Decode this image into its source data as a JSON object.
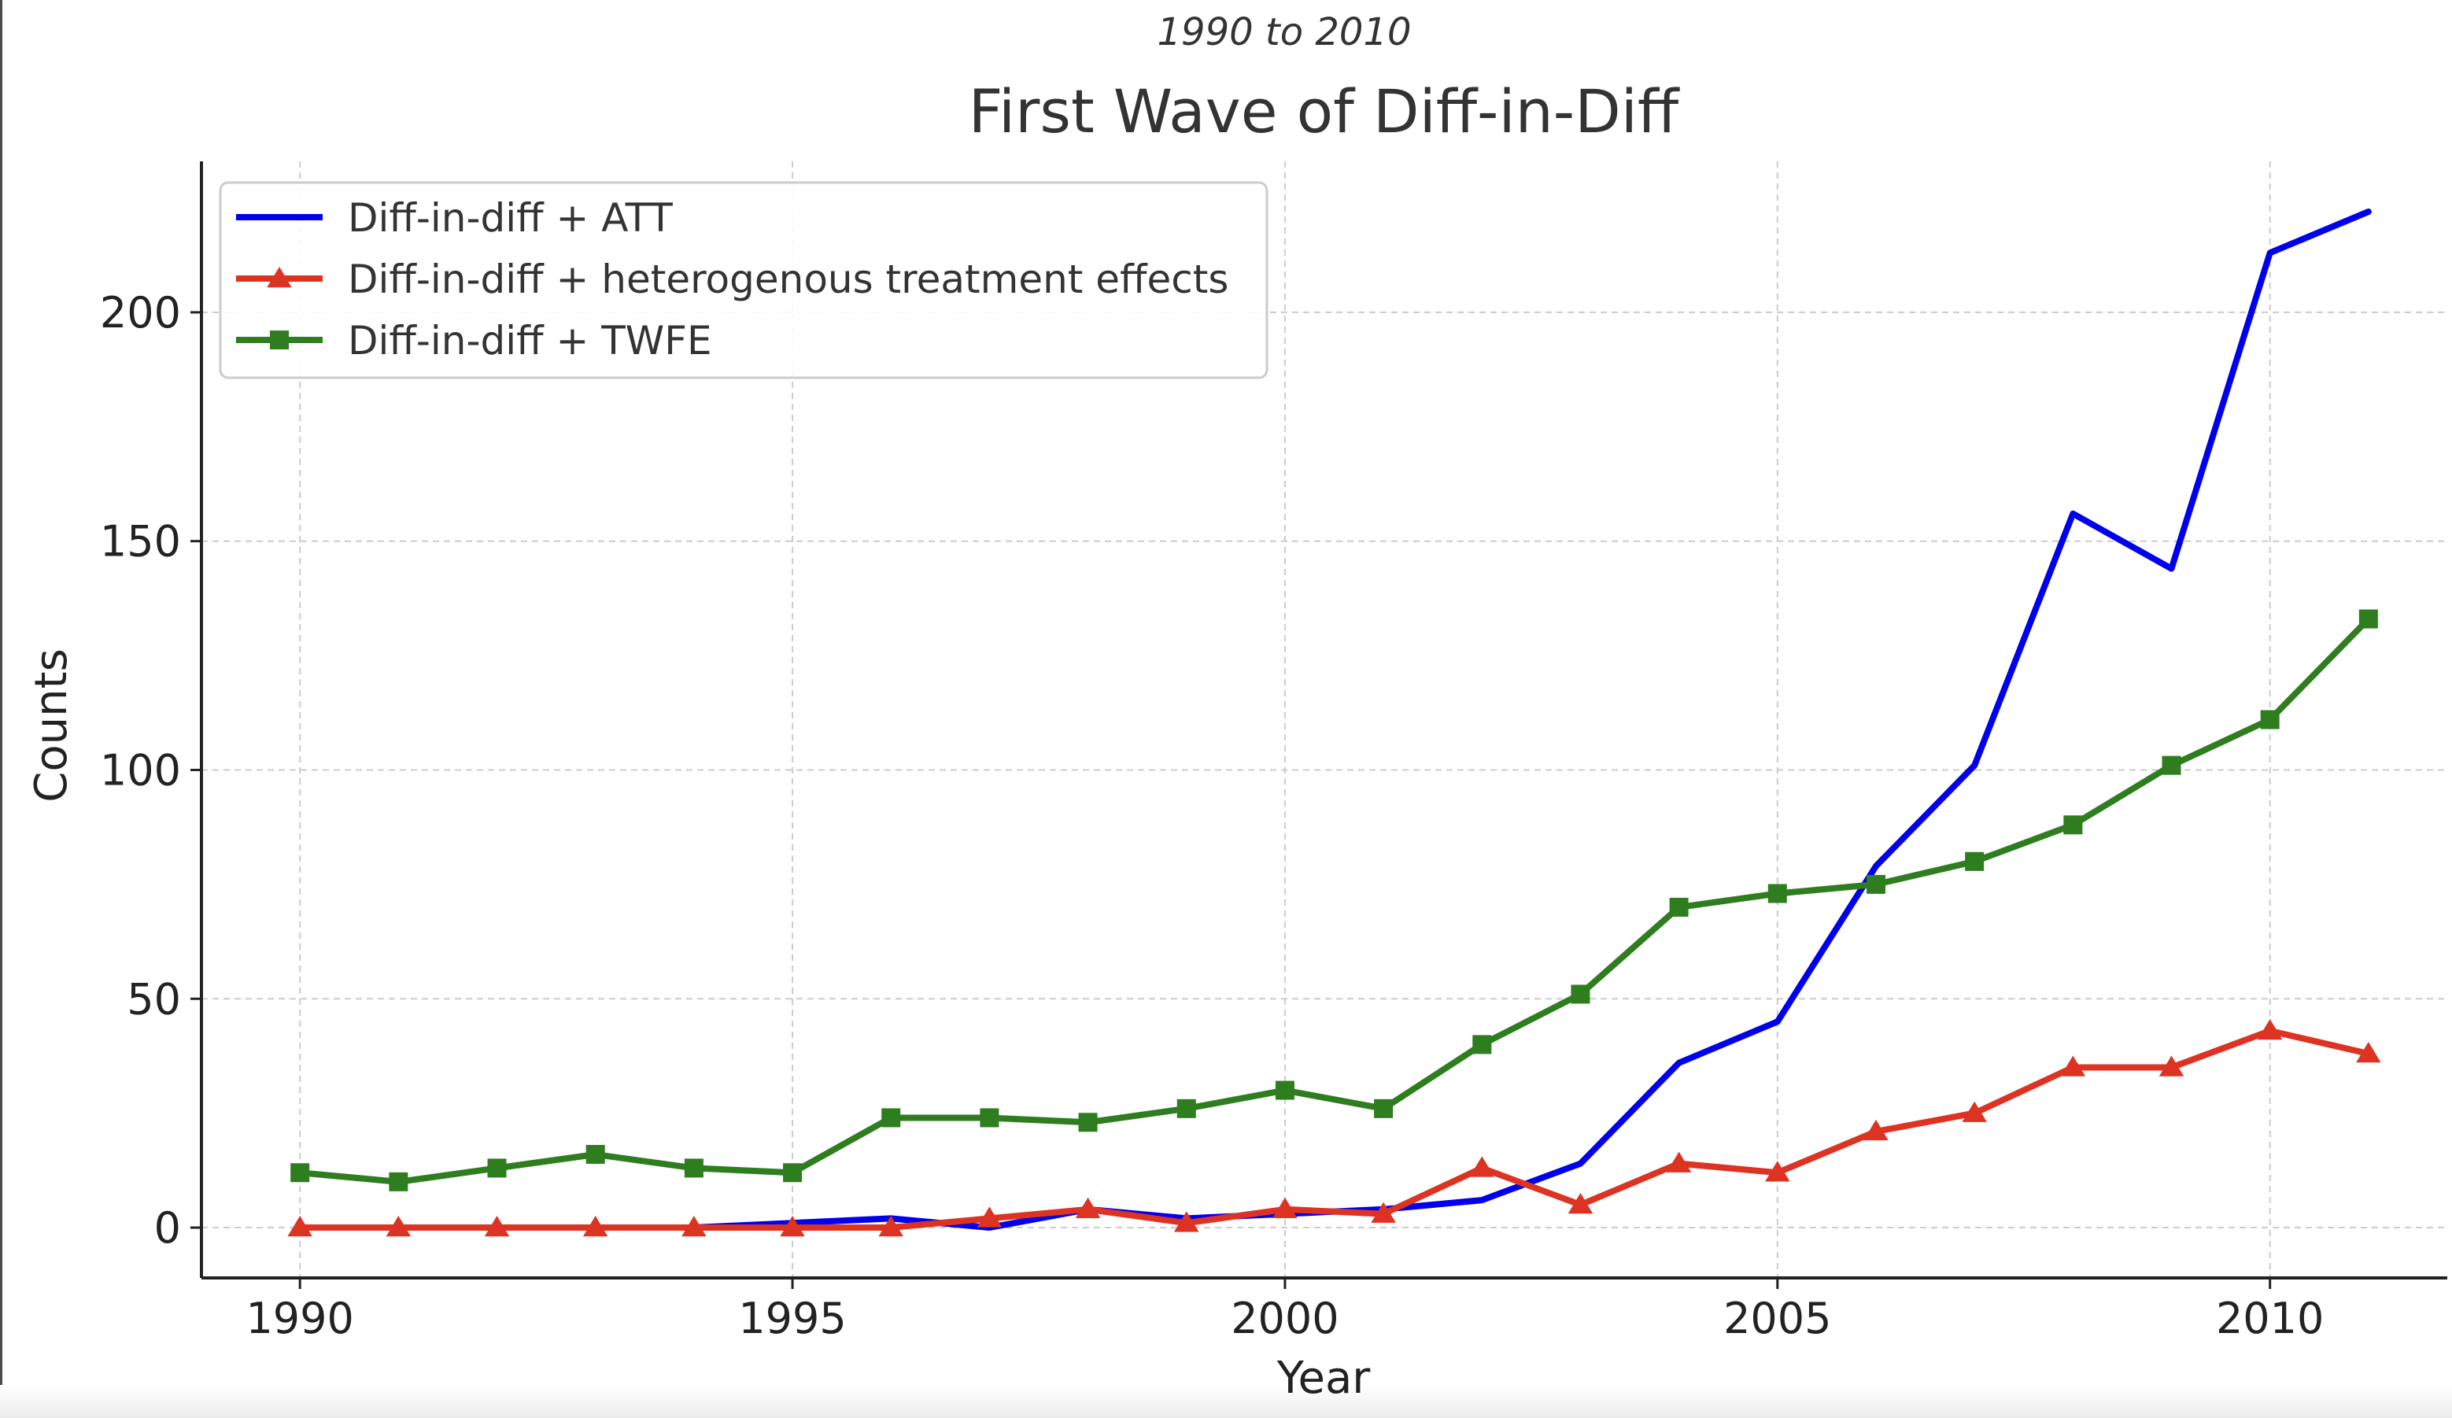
{
  "colors": {
    "att": "#0000ee",
    "het": "#dd3322",
    "twfe": "#2e7d1f",
    "text": "#333333",
    "axis": "#222222",
    "grid": "#cccccc",
    "legend_border": "#cccccc"
  },
  "chart_data": {
    "type": "line",
    "subtitle": "1990 to 2010",
    "title": "First Wave of Diff-in-Diff",
    "xlabel": "Year",
    "ylabel": "Counts",
    "xlim": [
      1989,
      2011.8
    ],
    "ylim": [
      -11,
      233
    ],
    "xticks": [
      1990,
      1995,
      2000,
      2005,
      2010
    ],
    "yticks": [
      0,
      50,
      100,
      150,
      200
    ],
    "grid": true,
    "grid_style": "dashed",
    "legend_position": "top-left",
    "x": [
      1990,
      1991,
      1992,
      1993,
      1994,
      1995,
      1996,
      1997,
      1998,
      1999,
      2000,
      2001,
      2002,
      2003,
      2004,
      2005,
      2006,
      2007,
      2008,
      2009,
      2010,
      2011
    ],
    "series": [
      {
        "name": "Diff-in-diff + ATT",
        "color_key": "att",
        "marker": "none",
        "values": [
          0,
          0,
          0,
          0,
          0,
          1,
          2,
          0,
          4,
          2,
          3,
          4,
          6,
          14,
          36,
          45,
          79,
          101,
          156,
          144,
          213,
          222
        ]
      },
      {
        "name": "Diff-in-diff + heterogenous treatment effects",
        "color_key": "het",
        "marker": "triangle",
        "values": [
          0,
          0,
          0,
          0,
          0,
          0,
          0,
          2,
          4,
          1,
          4,
          3,
          13,
          5,
          14,
          12,
          21,
          25,
          35,
          35,
          43,
          38
        ]
      },
      {
        "name": "Diff-in-diff + TWFE",
        "color_key": "twfe",
        "marker": "square",
        "values": [
          12,
          10,
          13,
          16,
          13,
          12,
          24,
          24,
          23,
          26,
          30,
          26,
          40,
          51,
          70,
          73,
          75,
          80,
          88,
          101,
          111,
          133
        ]
      }
    ]
  }
}
